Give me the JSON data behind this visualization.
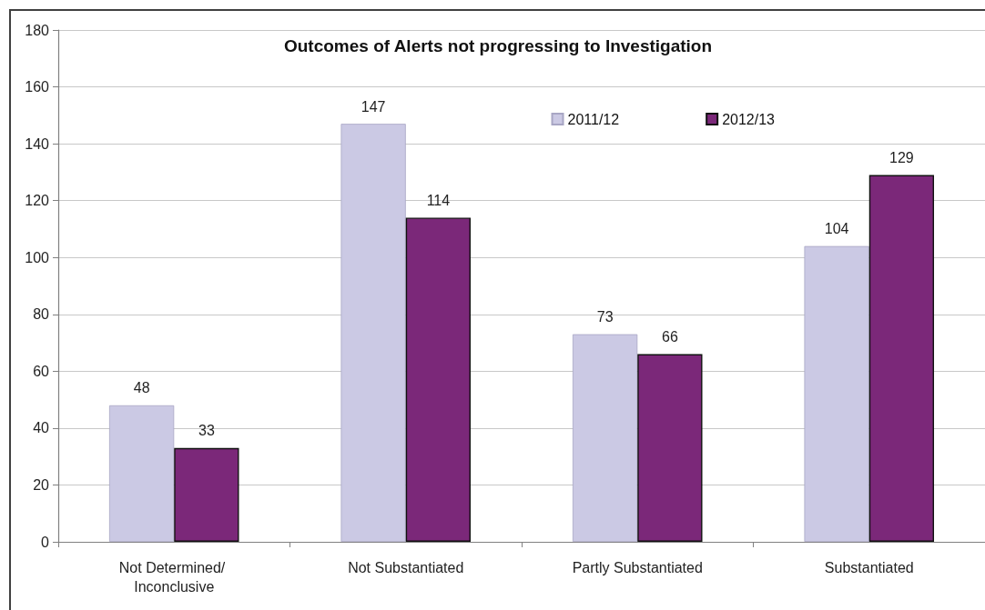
{
  "chart_data": {
    "type": "bar",
    "title": "Outcomes of Alerts not progressing to Investigation",
    "categories": [
      "Not Determined/ Inconclusive",
      "Not Substantiated",
      "Partly Substantiated",
      "Substantiated"
    ],
    "series": [
      {
        "name": "2011/12",
        "color": "#cbc9e4",
        "values": [
          48,
          147,
          73,
          104
        ]
      },
      {
        "name": "2012/13",
        "color": "#7b2879",
        "values": [
          33,
          114,
          66,
          129
        ]
      }
    ],
    "ylim": [
      0,
      180
    ],
    "yticks": [
      0,
      20,
      40,
      60,
      80,
      100,
      120,
      140,
      160,
      180
    ],
    "grid": "y",
    "legend": "top right",
    "data_labels": true
  }
}
